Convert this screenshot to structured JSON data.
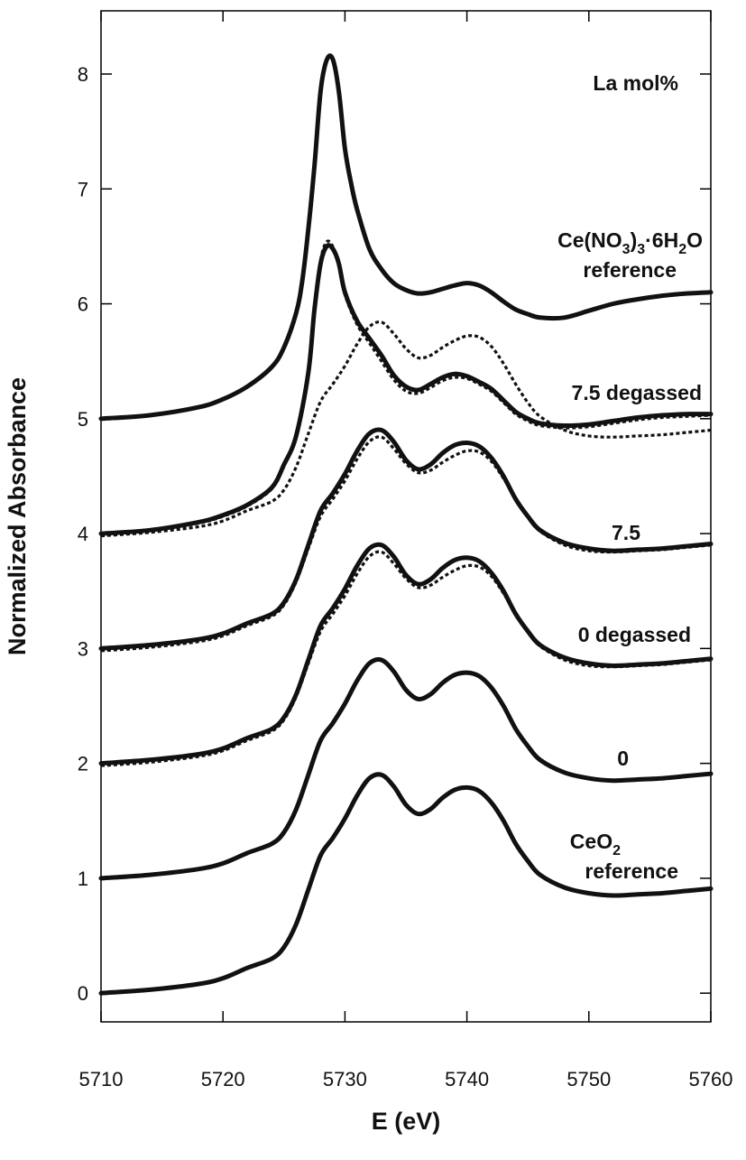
{
  "chart_data": {
    "type": "line",
    "title": "",
    "xlabel": "E (eV)",
    "ylabel": "Normalized Absorbance",
    "xlim": [
      5710,
      5760
    ],
    "ylim": [
      -0.25,
      8.55
    ],
    "xticks": [
      5710,
      5720,
      5730,
      5740,
      5750,
      5760
    ],
    "yticks": [
      0,
      1,
      2,
      3,
      4,
      5,
      6,
      7,
      8
    ],
    "grid": false,
    "header": "La mol%",
    "series": [
      {
        "name": "CeO2 reference",
        "label_lines": [
          "CeO",
          "reference"
        ],
        "label_subscript": "2",
        "style": "solid",
        "x": [
          5710,
          5714,
          5718,
          5720,
          5722,
          5724,
          5725,
          5726,
          5727,
          5728,
          5729,
          5730,
          5731,
          5732,
          5733,
          5734,
          5735,
          5736,
          5737,
          5738,
          5739,
          5740,
          5741,
          5742,
          5743,
          5744,
          5745,
          5746,
          5748,
          5750,
          5752,
          5754,
          5756,
          5758,
          5760
        ],
        "values": [
          0.0,
          0.03,
          0.08,
          0.13,
          0.22,
          0.3,
          0.4,
          0.6,
          0.9,
          1.2,
          1.35,
          1.52,
          1.72,
          1.87,
          1.9,
          1.8,
          1.64,
          1.56,
          1.6,
          1.7,
          1.77,
          1.79,
          1.76,
          1.66,
          1.5,
          1.3,
          1.15,
          1.03,
          0.92,
          0.87,
          0.85,
          0.86,
          0.87,
          0.89,
          0.91
        ]
      },
      {
        "name": "0",
        "label_lines": [
          "0"
        ],
        "style": "solid",
        "x": [
          5710,
          5714,
          5718,
          5720,
          5722,
          5724,
          5725,
          5726,
          5727,
          5728,
          5729,
          5730,
          5731,
          5732,
          5733,
          5734,
          5735,
          5736,
          5737,
          5738,
          5739,
          5740,
          5741,
          5742,
          5743,
          5744,
          5745,
          5746,
          5748,
          5750,
          5752,
          5754,
          5756,
          5758,
          5760
        ],
        "values": [
          1.0,
          1.03,
          1.08,
          1.13,
          1.22,
          1.3,
          1.4,
          1.6,
          1.9,
          2.2,
          2.35,
          2.52,
          2.72,
          2.87,
          2.9,
          2.8,
          2.64,
          2.56,
          2.6,
          2.7,
          2.77,
          2.79,
          2.76,
          2.66,
          2.5,
          2.3,
          2.15,
          2.03,
          1.92,
          1.87,
          1.85,
          1.86,
          1.87,
          1.89,
          1.91
        ]
      },
      {
        "name": "0 degassed",
        "label_lines": [
          "0 degassed"
        ],
        "style": "solid",
        "x": [
          5710,
          5714,
          5718,
          5720,
          5722,
          5724,
          5725,
          5726,
          5727,
          5728,
          5729,
          5730,
          5731,
          5732,
          5733,
          5734,
          5735,
          5736,
          5737,
          5738,
          5739,
          5740,
          5741,
          5742,
          5743,
          5744,
          5745,
          5746,
          5748,
          5750,
          5752,
          5754,
          5756,
          5758,
          5760
        ],
        "values": [
          2.0,
          2.03,
          2.08,
          2.13,
          2.22,
          2.3,
          2.4,
          2.6,
          2.9,
          3.2,
          3.35,
          3.52,
          3.72,
          3.87,
          3.9,
          3.8,
          3.64,
          3.56,
          3.6,
          3.7,
          3.77,
          3.79,
          3.76,
          3.66,
          3.5,
          3.3,
          3.15,
          3.03,
          2.92,
          2.87,
          2.85,
          2.86,
          2.87,
          2.89,
          2.91
        ]
      },
      {
        "name": "7.5",
        "label_lines": [
          "7.5"
        ],
        "style": "solid",
        "x": [
          5710,
          5714,
          5718,
          5720,
          5722,
          5724,
          5725,
          5726,
          5727,
          5728,
          5729,
          5730,
          5731,
          5732,
          5733,
          5734,
          5735,
          5736,
          5737,
          5738,
          5739,
          5740,
          5741,
          5742,
          5743,
          5744,
          5745,
          5746,
          5748,
          5750,
          5752,
          5754,
          5756,
          5758,
          5760
        ],
        "values": [
          3.0,
          3.03,
          3.08,
          3.13,
          3.22,
          3.3,
          3.4,
          3.6,
          3.9,
          4.2,
          4.35,
          4.52,
          4.72,
          4.87,
          4.9,
          4.8,
          4.64,
          4.56,
          4.6,
          4.7,
          4.77,
          4.79,
          4.76,
          4.66,
          4.5,
          4.3,
          4.15,
          4.03,
          3.92,
          3.87,
          3.85,
          3.86,
          3.87,
          3.89,
          3.91
        ]
      },
      {
        "name": "7.5 degassed",
        "label_lines": [
          "7.5 degassed"
        ],
        "style": "solid",
        "x": [
          5710,
          5714,
          5718,
          5720,
          5722,
          5724,
          5725,
          5726,
          5727,
          5727.5,
          5728,
          5728.5,
          5729,
          5729.5,
          5730,
          5731,
          5732,
          5733,
          5734,
          5735,
          5736,
          5737,
          5738,
          5739,
          5740,
          5741,
          5742,
          5743,
          5744,
          5745,
          5746,
          5748,
          5750,
          5752,
          5754,
          5756,
          5758,
          5760
        ],
        "values": [
          4.0,
          4.03,
          4.1,
          4.16,
          4.25,
          4.4,
          4.6,
          4.85,
          5.4,
          5.95,
          6.35,
          6.5,
          6.48,
          6.35,
          6.1,
          5.85,
          5.7,
          5.55,
          5.38,
          5.28,
          5.25,
          5.3,
          5.36,
          5.39,
          5.37,
          5.32,
          5.26,
          5.16,
          5.06,
          5.0,
          4.96,
          4.94,
          4.95,
          4.98,
          5.01,
          5.03,
          5.04,
          5.04
        ]
      },
      {
        "name": "Ce(NO3)3·6H2O reference",
        "label_lines": [
          "Ce(NO",
          ")",
          "·6H",
          "O",
          "reference"
        ],
        "label_subscripts": [
          "3",
          "3",
          "2"
        ],
        "style": "solid",
        "x": [
          5710,
          5714,
          5718,
          5720,
          5722,
          5724,
          5725,
          5726,
          5726.5,
          5727,
          5727.5,
          5728,
          5728.5,
          5729,
          5729.5,
          5730,
          5730.5,
          5731,
          5732,
          5733,
          5734,
          5735,
          5736,
          5737,
          5738,
          5739,
          5740,
          5741,
          5742,
          5743,
          5744,
          5745,
          5746,
          5748,
          5750,
          5752,
          5754,
          5756,
          5758,
          5760
        ],
        "values": [
          5.0,
          5.03,
          5.1,
          5.17,
          5.28,
          5.45,
          5.62,
          5.92,
          6.2,
          6.65,
          7.2,
          7.85,
          8.12,
          8.13,
          7.85,
          7.35,
          7.05,
          6.82,
          6.48,
          6.3,
          6.18,
          6.12,
          6.09,
          6.1,
          6.13,
          6.16,
          6.18,
          6.16,
          6.1,
          6.02,
          5.95,
          5.91,
          5.88,
          5.88,
          5.94,
          6.0,
          6.04,
          6.07,
          6.09,
          6.1
        ]
      },
      {
        "name": "0 (dotted comparison)",
        "style": "dotted",
        "x": [
          5710,
          5714,
          5718,
          5720,
          5722,
          5724,
          5725,
          5726,
          5727,
          5728,
          5729,
          5730,
          5731,
          5732,
          5733,
          5734,
          5735,
          5736,
          5737,
          5738,
          5739,
          5740,
          5741,
          5742,
          5743,
          5744,
          5745,
          5746,
          5748,
          5750,
          5752,
          5754,
          5756,
          5758,
          5760
        ],
        "values": [
          1.98,
          2.01,
          2.06,
          2.11,
          2.2,
          2.28,
          2.38,
          2.58,
          2.87,
          3.15,
          3.3,
          3.46,
          3.65,
          3.8,
          3.84,
          3.74,
          3.61,
          3.53,
          3.55,
          3.62,
          3.68,
          3.72,
          3.71,
          3.63,
          3.48,
          3.3,
          3.14,
          3.02,
          2.9,
          2.85,
          2.84,
          2.85,
          2.86,
          2.88,
          2.9
        ]
      },
      {
        "name": "0 degassed (dotted comparison)",
        "style": "dotted",
        "x": [
          5710,
          5714,
          5718,
          5720,
          5722,
          5724,
          5725,
          5726,
          5727,
          5728,
          5729,
          5730,
          5731,
          5732,
          5733,
          5734,
          5735,
          5736,
          5737,
          5738,
          5739,
          5740,
          5741,
          5742,
          5743,
          5744,
          5745,
          5746,
          5748,
          5750,
          5752,
          5754,
          5756,
          5758,
          5760
        ],
        "values": [
          2.98,
          3.01,
          3.06,
          3.11,
          3.2,
          3.28,
          3.38,
          3.58,
          3.87,
          4.15,
          4.3,
          4.46,
          4.65,
          4.8,
          4.84,
          4.74,
          4.61,
          4.53,
          4.55,
          4.62,
          4.68,
          4.72,
          4.71,
          4.63,
          4.48,
          4.3,
          4.14,
          4.02,
          3.9,
          3.85,
          3.84,
          3.85,
          3.86,
          3.88,
          3.9
        ]
      },
      {
        "name": "7.5 (dotted comparison)",
        "style": "dotted",
        "x": [
          5710,
          5714,
          5718,
          5720,
          5722,
          5724,
          5725,
          5726,
          5727,
          5728,
          5729,
          5730,
          5731,
          5732,
          5733,
          5734,
          5735,
          5736,
          5737,
          5738,
          5739,
          5740,
          5741,
          5742,
          5743,
          5744,
          5745,
          5746,
          5748,
          5750,
          5752,
          5754,
          5756,
          5758,
          5760
        ],
        "values": [
          3.98,
          4.01,
          4.06,
          4.11,
          4.2,
          4.28,
          4.38,
          4.58,
          4.87,
          5.15,
          5.3,
          5.46,
          5.65,
          5.8,
          5.84,
          5.74,
          5.61,
          5.53,
          5.55,
          5.62,
          5.68,
          5.72,
          5.71,
          5.63,
          5.48,
          5.3,
          5.14,
          5.02,
          4.9,
          4.85,
          4.84,
          4.85,
          4.86,
          4.88,
          4.9
        ]
      },
      {
        "name": "7.5 degassed (dotted comparison)",
        "style": "dotted",
        "x": [
          5710,
          5714,
          5718,
          5720,
          5722,
          5724,
          5725,
          5726,
          5727,
          5727.5,
          5728,
          5728.5,
          5729,
          5729.5,
          5730,
          5731,
          5732,
          5733,
          5734,
          5735,
          5736,
          5737,
          5738,
          5739,
          5740,
          5741,
          5742,
          5743,
          5744,
          5745,
          5746,
          5748,
          5750,
          5752,
          5754,
          5756,
          5758,
          5760
        ],
        "values": [
          3.99,
          4.02,
          4.09,
          4.15,
          4.24,
          4.39,
          4.59,
          4.84,
          5.39,
          5.97,
          6.38,
          6.54,
          6.5,
          6.35,
          6.08,
          5.82,
          5.66,
          5.5,
          5.34,
          5.24,
          5.22,
          5.27,
          5.33,
          5.36,
          5.35,
          5.3,
          5.24,
          5.14,
          5.04,
          4.98,
          4.94,
          4.92,
          4.93,
          4.96,
          4.99,
          5.01,
          5.02,
          5.03
        ]
      }
    ]
  }
}
